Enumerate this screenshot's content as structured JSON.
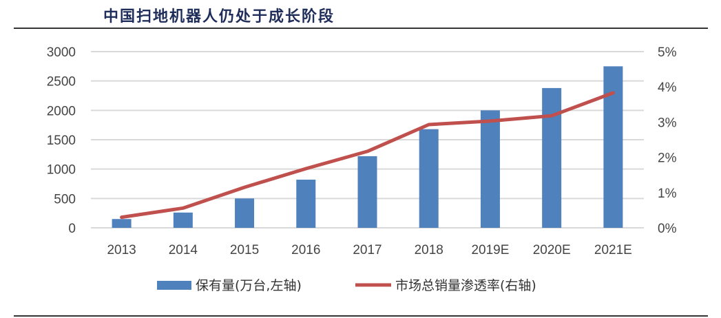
{
  "title": "中国扫地机器人仍处于成长阶段",
  "chart_data": {
    "type": "bar+line",
    "title": "中国扫地机器人仍处于成长阶段",
    "categories": [
      "2013",
      "2014",
      "2015",
      "2016",
      "2017",
      "2018",
      "2019E",
      "2020E",
      "2021E"
    ],
    "series": [
      {
        "name": "保有量(万台,左轴)",
        "type": "bar",
        "axis": "left",
        "color": "#4f81bd",
        "values": [
          150,
          260,
          500,
          820,
          1220,
          1680,
          2000,
          2380,
          2750
        ]
      },
      {
        "name": "市场总销量渗透率(右轴)",
        "type": "line",
        "axis": "right",
        "color": "#c0504d",
        "values": [
          0.3,
          0.56,
          1.15,
          1.68,
          2.17,
          2.93,
          3.03,
          3.18,
          3.83
        ]
      }
    ],
    "ylim_left": [
      0,
      3000
    ],
    "yticks_left": [
      "0",
      "500",
      "1000",
      "1500",
      "2000",
      "2500",
      "3000"
    ],
    "ylim_right": [
      0,
      5
    ],
    "yticks_right": [
      "0%",
      "1%",
      "2%",
      "3%",
      "4%",
      "5%"
    ],
    "grid": true,
    "legend": "bottom"
  }
}
